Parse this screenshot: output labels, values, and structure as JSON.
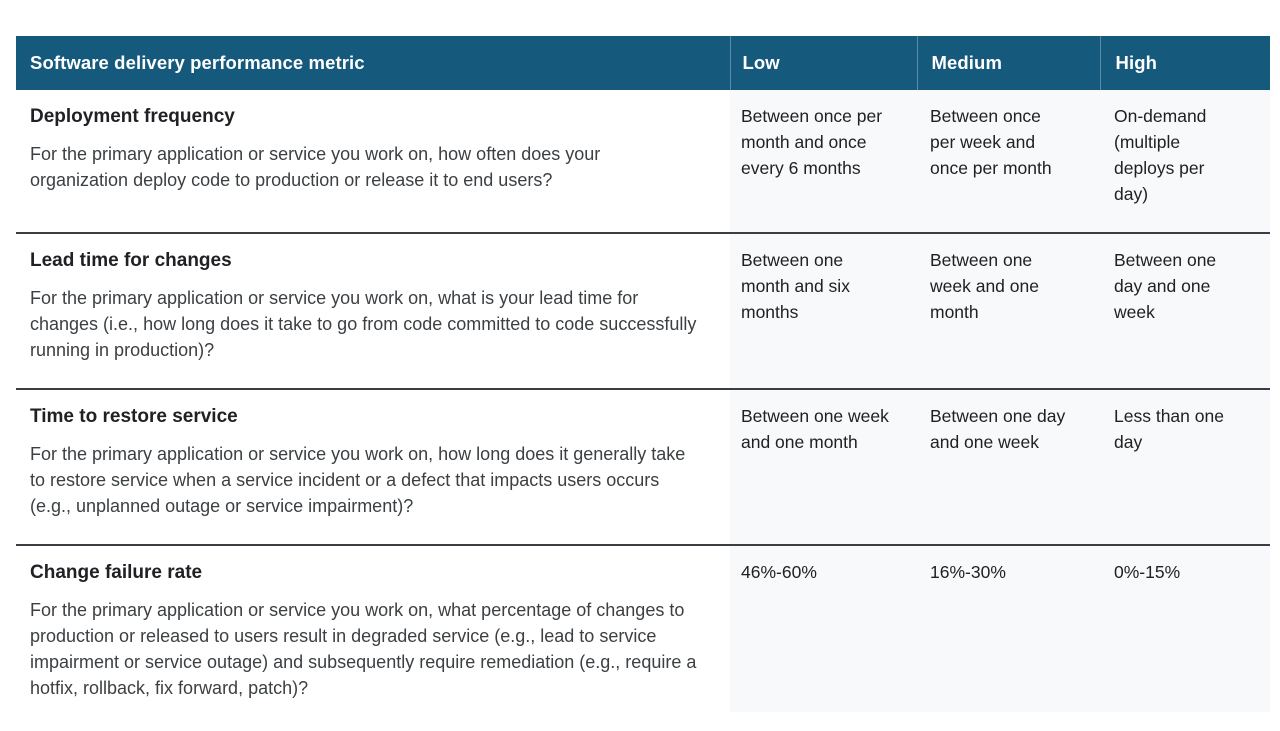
{
  "table": {
    "header": {
      "metric": "Software delivery performance metric",
      "low": "Low",
      "medium": "Medium",
      "high": "High"
    },
    "rows": [
      {
        "title": "Deployment frequency",
        "description": "For the primary application or service you work on, how often does your organization deploy code to production or release it to end users?",
        "low": "Between once per month and once every 6 months",
        "medium": "Between once per week and once per month",
        "high": "On-demand (multiple deploys per day)"
      },
      {
        "title": "Lead time for changes",
        "description": "For the primary application or service you work on, what is your lead time for changes (i.e., how long does it take to go from code committed to code successfully running in production)?",
        "low": "Between one month and six months",
        "medium": "Between one week and one month",
        "high": "Between one day and one week"
      },
      {
        "title": "Time to restore service",
        "description": "For the primary application or service you work on, how long does it generally take to restore service when a service incident or a defect that impacts users occurs (e.g., unplanned outage or service impairment)?",
        "low": "Between one week and one month",
        "medium": "Between one day and one week",
        "high": "Less than one day"
      },
      {
        "title": "Change failure rate",
        "description": "For the primary application or service you work on, what percentage of changes to production or released to users result in degraded service (e.g., lead to service impairment or service outage) and subsequently require remediation (e.g., require a hotfix, rollback, fix forward, patch)?",
        "low": "46%-60%",
        "medium": "16%-30%",
        "high": "0%-15%"
      }
    ]
  },
  "colors": {
    "header_bg": "#15597D",
    "header_text": "#FFFFFF",
    "column_bg": "#F8F9FA",
    "separator": "#3A3D42",
    "title_text": "#202124",
    "body_text": "#3C4043"
  }
}
